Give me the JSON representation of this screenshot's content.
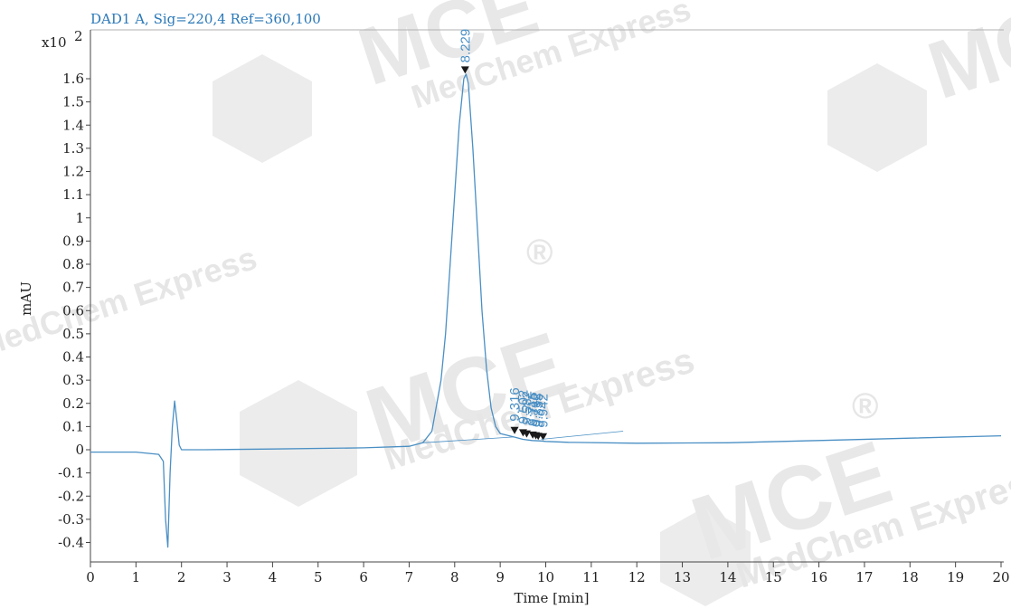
{
  "watermark": {
    "brand": "MCE",
    "company": "MedChem Express",
    "mark": "®",
    "color": "#e2e2e2"
  },
  "chart_data": {
    "type": "line",
    "title": "DAD1 A,  Sig=220,4 Ref=360,100",
    "xlabel": "Time [min]",
    "ylabel": "mAU",
    "y_multiplier_label": "x10",
    "y_multiplier_exponent": "2",
    "xlim": [
      0,
      20
    ],
    "ylim": [
      -0.45,
      1.77
    ],
    "x_ticks": [
      0,
      1,
      2,
      3,
      4,
      5,
      6,
      7,
      8,
      9,
      10,
      11,
      12,
      13,
      14,
      15,
      16,
      17,
      18,
      19,
      20
    ],
    "x_tick_labels": [
      "0",
      "1",
      "2",
      "3",
      "4",
      "5",
      "6",
      "7",
      "8",
      "9",
      "10",
      "11",
      "12",
      "13",
      "14",
      "15",
      "16",
      "17",
      "18",
      "19",
      "20"
    ],
    "y_ticks": [
      -0.4,
      -0.3,
      -0.2,
      -0.1,
      0,
      0.1,
      0.2,
      0.3,
      0.4,
      0.5,
      0.6,
      0.7,
      0.8,
      0.9,
      1,
      1.1,
      1.2,
      1.3,
      1.4,
      1.5,
      1.6
    ],
    "y_tick_labels": [
      "-0.4",
      "-0.3",
      "-0.2",
      "-0.1",
      "0",
      "0.1",
      "0.2",
      "0.3",
      "0.4",
      "0.5",
      "0.6",
      "0.7",
      "0.8",
      "0.9",
      "1",
      "1.1",
      "1.2",
      "1.3",
      "1.4",
      "1.5",
      "1.6"
    ],
    "grid": false,
    "line_color": "#4a8fc4",
    "series": [
      {
        "x": [
          0,
          1.0,
          1.5,
          1.6,
          1.65,
          1.7,
          1.75,
          1.8,
          1.85,
          1.9,
          1.95,
          2.0,
          2.5,
          4,
          6,
          7.0,
          7.3,
          7.5,
          7.7,
          7.8,
          7.9,
          8.0,
          8.1,
          8.2,
          8.25,
          8.3,
          8.4,
          8.5,
          8.6,
          8.7,
          8.8,
          8.9,
          9.0,
          9.2,
          9.3,
          9.5,
          9.7,
          9.9,
          10.0,
          10.5,
          12,
          14,
          16,
          18,
          20
        ],
        "y": [
          -0.01,
          -0.01,
          -0.02,
          -0.05,
          -0.3,
          -0.42,
          -0.1,
          0.1,
          0.21,
          0.12,
          0.02,
          0.0,
          0.0,
          0.003,
          0.008,
          0.015,
          0.03,
          0.08,
          0.3,
          0.5,
          0.8,
          1.1,
          1.4,
          1.6,
          1.62,
          1.58,
          1.3,
          0.95,
          0.6,
          0.35,
          0.18,
          0.1,
          0.07,
          0.06,
          0.055,
          0.045,
          0.04,
          0.038,
          0.036,
          0.032,
          0.028,
          0.03,
          0.04,
          0.05,
          0.06
        ]
      }
    ],
    "peaks": [
      {
        "rt": 8.229,
        "label": "8.229",
        "y": 1.63
      },
      {
        "rt": 9.316,
        "label": "9.316",
        "y": 0.075
      },
      {
        "rt": 9.502,
        "label": "9.502",
        "y": 0.065
      },
      {
        "rt": 9.582,
        "label": "9.582",
        "y": 0.06
      },
      {
        "rt": 9.715,
        "label": "9.715",
        "y": 0.055
      },
      {
        "rt": 9.782,
        "label": "9.782",
        "y": 0.052
      },
      {
        "rt": 9.835,
        "label": "9.835",
        "y": 0.05
      },
      {
        "rt": 9.942,
        "label": "9.942",
        "y": 0.048
      }
    ]
  }
}
